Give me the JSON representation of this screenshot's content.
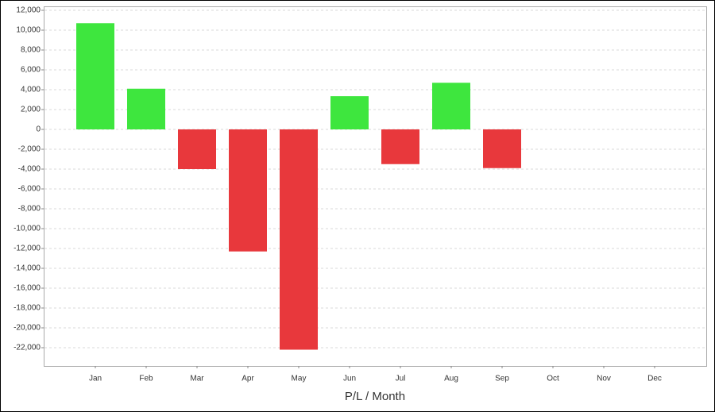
{
  "chart_data": {
    "type": "bar",
    "x_label": "P/L / Month",
    "categories": [
      "Jan",
      "Feb",
      "Mar",
      "Apr",
      "May",
      "Jun",
      "Jul",
      "Aug",
      "Sep",
      "Oct",
      "Nov",
      "Dec"
    ],
    "values": [
      10700,
      4100,
      -4000,
      -12300,
      -22200,
      3350,
      -3500,
      4700,
      -3900,
      null,
      null,
      null
    ],
    "positive_color": "#3ee63e",
    "negative_color": "#e8383c",
    "ylim": [
      -23840,
      12400
    ],
    "yticks": [
      {
        "value": 12000,
        "label": "12,000"
      },
      {
        "value": 10000,
        "label": "10,000"
      },
      {
        "value": 8000,
        "label": "8,000"
      },
      {
        "value": 6000,
        "label": "6,000"
      },
      {
        "value": 4000,
        "label": "4,000"
      },
      {
        "value": 2000,
        "label": "2,000"
      },
      0,
      {
        "value": -2000,
        "label": "-2,000"
      },
      {
        "value": -4000,
        "label": "-4,000"
      },
      {
        "value": -6000,
        "label": "-6,000"
      },
      {
        "value": -8000,
        "label": "-8,000"
      },
      {
        "value": -10000,
        "label": "-10,000"
      },
      {
        "value": -12000,
        "label": "-12,000"
      },
      {
        "value": -14000,
        "label": "-14,000"
      },
      {
        "value": -16000,
        "label": "-16,000"
      },
      {
        "value": -18000,
        "label": "-18,000"
      },
      {
        "value": -20000,
        "label": "-20,000"
      },
      {
        "value": -22000,
        "label": "-22,000"
      }
    ],
    "grid": true
  }
}
